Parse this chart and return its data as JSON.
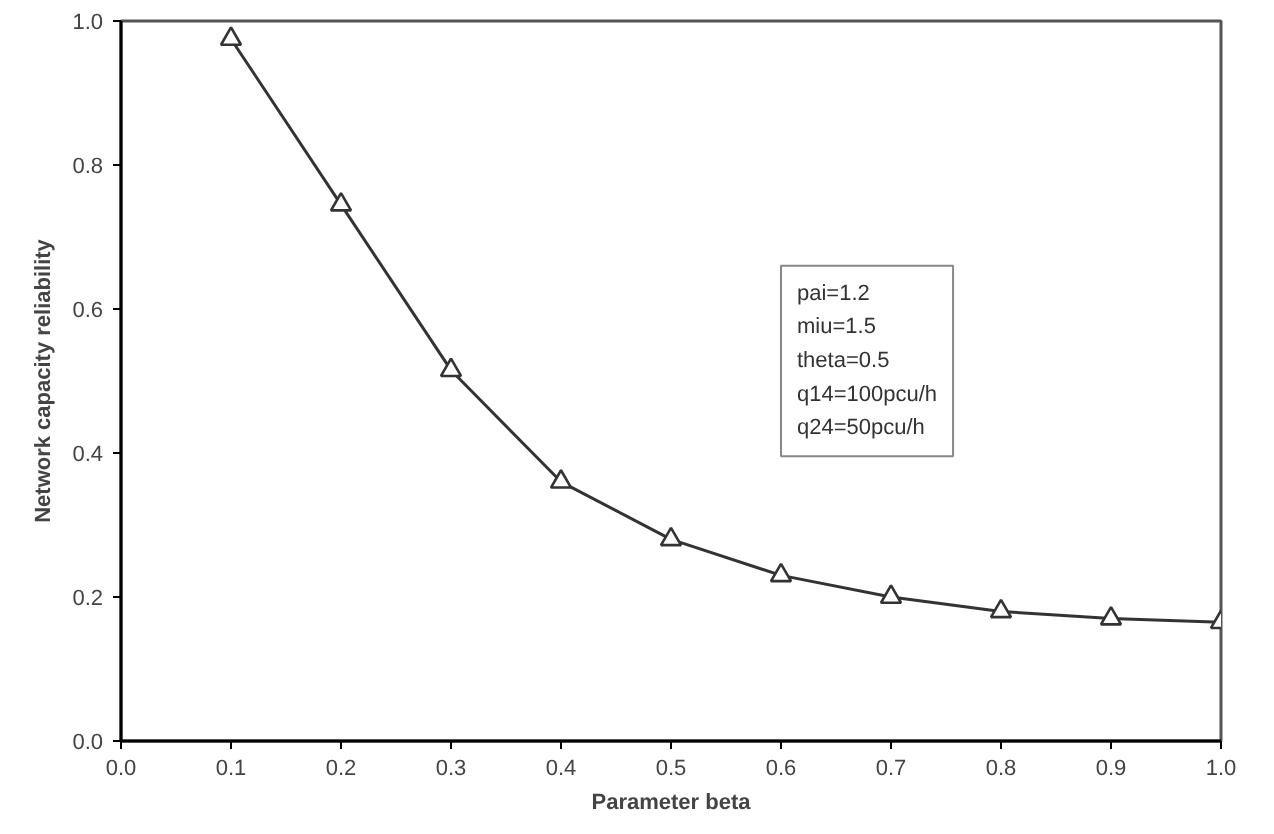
{
  "chart_data": {
    "type": "line",
    "xlabel": "Parameter beta",
    "ylabel": "Network capacity reliability",
    "x": [
      0.1,
      0.2,
      0.3,
      0.4,
      0.5,
      0.6,
      0.7,
      0.8,
      0.9,
      1.0
    ],
    "series": [
      {
        "color": "#333333",
        "values": [
          0.975,
          0.745,
          0.515,
          0.36,
          0.28,
          0.23,
          0.2,
          0.18,
          0.17,
          0.165
        ]
      }
    ],
    "xlim": [
      0.0,
      1.0
    ],
    "ylim": [
      0.0,
      1.0
    ],
    "xticks": [
      {
        "value": 0.0,
        "label": "0.0"
      },
      0.1,
      0.2,
      0.3,
      0.4,
      0.5,
      0.6,
      0.7,
      0.8,
      0.9,
      {
        "value": 1.0,
        "label": "1.0"
      }
    ],
    "yticks": [
      {
        "value": 0.0,
        "label": "0.0"
      },
      0.2,
      0.4,
      0.6,
      0.8,
      {
        "value": 1.0,
        "label": "1.0"
      }
    ],
    "grid": false,
    "marker": "triangle",
    "line_style": "solid",
    "annotations": [
      "pai=1.2",
      "miu=1.5",
      "theta=0.5",
      "q14=100pcu/h",
      "q24=50pcu/h"
    ]
  }
}
